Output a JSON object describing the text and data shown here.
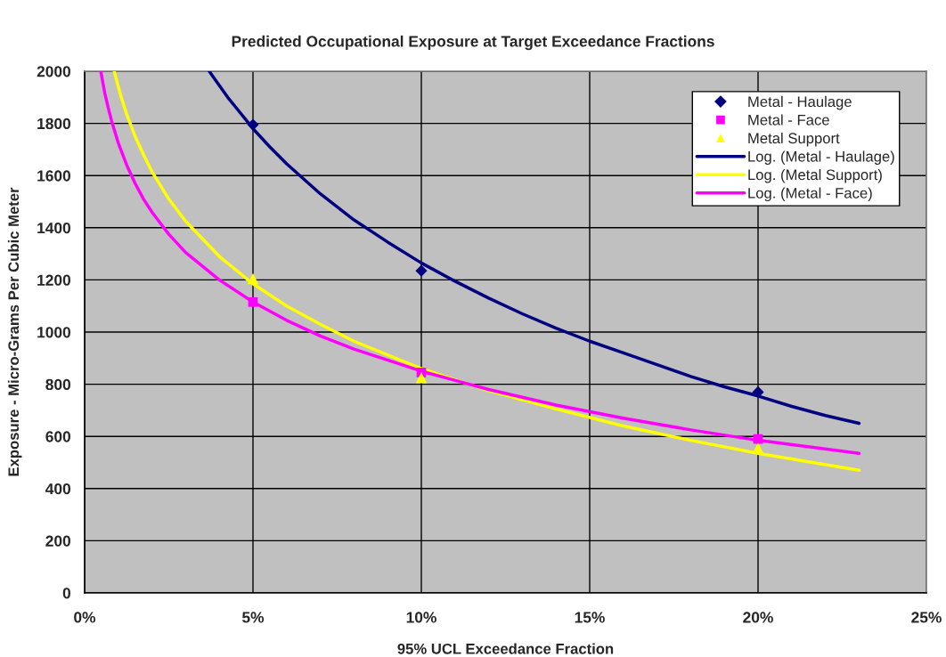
{
  "chart_data": {
    "type": "scatter",
    "title": "Predicted Occupational Exposure at Target Exceedance Fractions",
    "xlabel": "95% UCL Exceedance Fraction",
    "ylabel": "Exposure - Micro-Grams Per Cubic Meter",
    "xlim": [
      0,
      25
    ],
    "xticks": [
      {
        "value": 0,
        "label": "0%"
      },
      {
        "value": 5,
        "label": "5%"
      },
      {
        "value": 10,
        "label": "10%"
      },
      {
        "value": 15,
        "label": "15%"
      },
      {
        "value": 20,
        "label": "20%"
      },
      {
        "value": 25,
        "label": "25%"
      }
    ],
    "ylim": [
      0,
      2000
    ],
    "yticks": [
      0,
      200,
      400,
      600,
      800,
      1000,
      1200,
      1400,
      1600,
      1800,
      2000
    ],
    "grid": true,
    "legend": "top right",
    "series": [
      {
        "name": "Metal - Haulage",
        "marker": "diamond",
        "color": "#000080",
        "x": [
          5,
          10,
          20
        ],
        "values": [
          1795,
          1235,
          770
        ]
      },
      {
        "name": "Metal - Face",
        "marker": "square",
        "color": "#ff00ff",
        "x": [
          5,
          10,
          20
        ],
        "values": [
          1115,
          845,
          590
        ]
      },
      {
        "name": "Metal Support",
        "marker": "triangle",
        "color": "#ffff00",
        "x": [
          5,
          10,
          20
        ],
        "values": [
          1205,
          825,
          555
        ]
      },
      {
        "name": "Log. (Metal - Haulage)",
        "type": "line",
        "marker": "none",
        "line_style": "solid",
        "color": "#000080",
        "x": [
          3.7,
          4,
          4.25,
          4.5,
          5,
          5.5,
          6,
          7,
          8,
          9,
          10,
          11,
          12,
          13,
          14,
          15,
          16,
          17,
          18,
          19,
          20,
          21,
          22,
          23
        ],
        "values": [
          2000,
          1945,
          1900,
          1860,
          1780,
          1710,
          1645,
          1530,
          1430,
          1345,
          1265,
          1195,
          1130,
          1070,
          1015,
          965,
          920,
          875,
          830,
          790,
          755,
          715,
          680,
          650
        ]
      },
      {
        "name": "Log. (Metal Support)",
        "type": "line",
        "marker": "none",
        "line_style": "solid",
        "color": "#ffff00",
        "x": [
          0.88,
          1,
          1.1,
          1.25,
          1.5,
          1.75,
          2,
          2.5,
          3,
          4,
          5,
          6,
          7,
          8,
          10,
          12,
          14,
          16,
          18,
          20,
          23
        ],
        "values": [
          2000,
          1940,
          1895,
          1835,
          1750,
          1680,
          1615,
          1510,
          1425,
          1290,
          1185,
          1100,
          1030,
          965,
          860,
          775,
          705,
          640,
          585,
          535,
          470
        ]
      },
      {
        "name": "Log. (Metal - Face)",
        "type": "line",
        "marker": "none",
        "line_style": "solid",
        "color": "#ff00ff",
        "x": [
          0.48,
          0.6,
          0.7,
          0.8,
          1,
          1.25,
          1.5,
          1.75,
          2,
          2.5,
          3,
          4,
          5,
          6,
          7,
          8,
          10,
          12,
          14,
          16,
          18,
          20,
          23
        ],
        "values": [
          2000,
          1915,
          1860,
          1810,
          1725,
          1640,
          1570,
          1510,
          1460,
          1375,
          1305,
          1200,
          1115,
          1045,
          985,
          935,
          850,
          780,
          720,
          670,
          625,
          585,
          535
        ]
      }
    ]
  }
}
